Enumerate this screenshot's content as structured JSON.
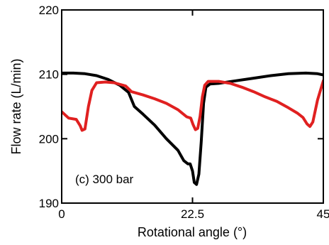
{
  "chart_data": {
    "type": "line",
    "title": "",
    "xlabel": "Rotational angle (°)",
    "ylabel": "Flow rate (L/min)",
    "xlim": [
      0,
      45
    ],
    "ylim": [
      190,
      220
    ],
    "xticks": [
      0,
      22.5,
      45
    ],
    "xtick_labels": [
      "0",
      "22.5",
      "45"
    ],
    "yticks": [
      190,
      200,
      210,
      220
    ],
    "ytick_labels": [
      "190",
      "200",
      "210",
      "220"
    ],
    "grid": false,
    "legend": null,
    "annotation": "(c) 300 bar",
    "series": [
      {
        "color": "#000000",
        "points": [
          [
            0,
            210.2
          ],
          [
            2,
            210.2
          ],
          [
            4,
            210.1
          ],
          [
            6,
            209.8
          ],
          [
            8,
            209.2
          ],
          [
            10,
            208.3
          ],
          [
            11.5,
            207.2
          ],
          [
            12.5,
            205.0
          ],
          [
            14,
            203.8
          ],
          [
            16,
            202.1
          ],
          [
            18,
            200.0
          ],
          [
            20,
            198.2
          ],
          [
            21,
            196.6
          ],
          [
            21.7,
            196.1
          ],
          [
            22.1,
            196.1
          ],
          [
            22.5,
            195.0
          ],
          [
            22.8,
            193.2
          ],
          [
            23.2,
            192.9
          ],
          [
            23.6,
            194.5
          ],
          [
            24.0,
            199.5
          ],
          [
            24.4,
            205.5
          ],
          [
            24.8,
            208.0
          ],
          [
            25.5,
            208.5
          ],
          [
            27,
            208.6
          ],
          [
            30,
            209.0
          ],
          [
            33,
            209.4
          ],
          [
            36,
            209.8
          ],
          [
            39,
            210.1
          ],
          [
            42,
            210.2
          ],
          [
            44,
            210.1
          ],
          [
            45,
            209.9
          ]
        ]
      },
      {
        "color": "#e02020",
        "points": [
          [
            0,
            204.2
          ],
          [
            1.2,
            203.2
          ],
          [
            2.5,
            203.0
          ],
          [
            3.2,
            202.0
          ],
          [
            3.5,
            201.3
          ],
          [
            4.0,
            201.5
          ],
          [
            4.6,
            205.0
          ],
          [
            5.2,
            207.5
          ],
          [
            6.0,
            208.7
          ],
          [
            7.5,
            208.8
          ],
          [
            9,
            208.7
          ],
          [
            11,
            208.2
          ],
          [
            12,
            207.3
          ],
          [
            14,
            206.8
          ],
          [
            16,
            206.2
          ],
          [
            18,
            205.5
          ],
          [
            20,
            204.5
          ],
          [
            21.5,
            203.4
          ],
          [
            22.2,
            203.2
          ],
          [
            22.6,
            202.2
          ],
          [
            23.0,
            201.4
          ],
          [
            23.4,
            201.6
          ],
          [
            23.8,
            203.5
          ],
          [
            24.2,
            206.5
          ],
          [
            24.6,
            208.3
          ],
          [
            25.2,
            208.9
          ],
          [
            27,
            208.9
          ],
          [
            29,
            208.6
          ],
          [
            31,
            208.0
          ],
          [
            33,
            207.3
          ],
          [
            35,
            206.5
          ],
          [
            37,
            205.8
          ],
          [
            39,
            204.8
          ],
          [
            40.5,
            204.0
          ],
          [
            41.5,
            203.3
          ],
          [
            42.2,
            202.3
          ],
          [
            42.7,
            201.9
          ],
          [
            43.2,
            202.6
          ],
          [
            44.0,
            206.0
          ],
          [
            45,
            209.0
          ]
        ]
      }
    ]
  }
}
